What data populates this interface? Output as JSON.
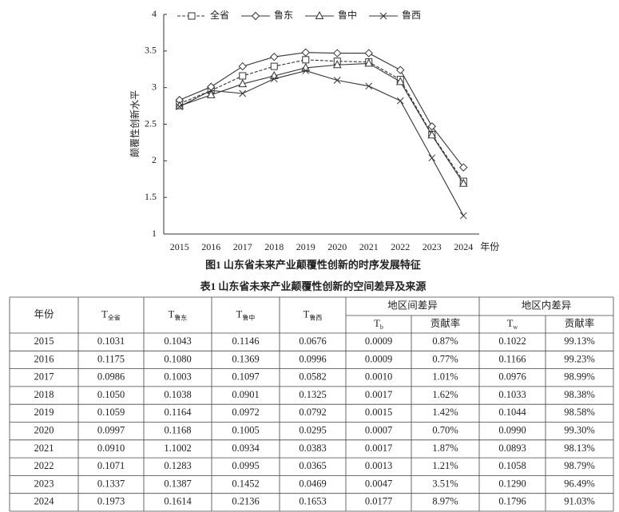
{
  "chart_data": {
    "type": "line",
    "categories": [
      "2015",
      "2016",
      "2017",
      "2018",
      "2019",
      "2020",
      "2021",
      "2022",
      "2023",
      "2024"
    ],
    "xlabel": "年份",
    "ylabel": "颠覆性创新水平",
    "ylim": [
      1,
      4
    ],
    "yticks": [
      1,
      1.5,
      2,
      2.5,
      3,
      3.5,
      4
    ],
    "caption": "图1 山东省未来产业颠覆性创新的时序发展特征",
    "series": [
      {
        "name": "全省",
        "color": "#333333",
        "marker": "square",
        "dashed": true,
        "values": [
          2.78,
          2.96,
          3.16,
          3.29,
          3.38,
          3.36,
          3.35,
          3.11,
          2.36,
          1.72
        ]
      },
      {
        "name": "鲁东",
        "color": "#333333",
        "marker": "diamond",
        "dashed": false,
        "values": [
          2.83,
          3.01,
          3.29,
          3.42,
          3.48,
          3.47,
          3.47,
          3.24,
          2.47,
          1.91
        ]
      },
      {
        "name": "鲁中",
        "color": "#333333",
        "marker": "triangle",
        "dashed": false,
        "values": [
          2.75,
          2.9,
          3.05,
          3.16,
          3.27,
          3.31,
          3.33,
          3.08,
          2.35,
          1.69
        ]
      },
      {
        "name": "鲁西",
        "color": "#333333",
        "marker": "cross",
        "dashed": false,
        "values": [
          2.74,
          2.96,
          2.92,
          3.12,
          3.23,
          3.1,
          3.02,
          2.82,
          2.04,
          1.25
        ]
      }
    ]
  },
  "table": {
    "title": "表1 山东省未来产业颠覆性创新的空间差异及来源",
    "header": {
      "year": "年份",
      "t_cols": [
        {
          "main": "T",
          "sub": "全省"
        },
        {
          "main": "T",
          "sub": "鲁东"
        },
        {
          "main": "T",
          "sub": "鲁中"
        },
        {
          "main": "T",
          "sub": "鲁西"
        }
      ],
      "groups": [
        {
          "label": "地区间差异",
          "t": {
            "main": "T",
            "sub": "b"
          },
          "rate": "贡献率"
        },
        {
          "label": "地区内差异",
          "t": {
            "main": "T",
            "sub": "w"
          },
          "rate": "贡献率"
        }
      ]
    },
    "rows": [
      [
        "2015",
        "0.1031",
        "0.1043",
        "0.1146",
        "0.0676",
        "0.0009",
        "0.87%",
        "0.1022",
        "99.13%"
      ],
      [
        "2016",
        "0.1175",
        "0.1080",
        "0.1369",
        "0.0996",
        "0.0009",
        "0.77%",
        "0.1166",
        "99.23%"
      ],
      [
        "2017",
        "0.0986",
        "0.1003",
        "0.1097",
        "0.0582",
        "0.0010",
        "1.01%",
        "0.0976",
        "98.99%"
      ],
      [
        "2018",
        "0.1050",
        "0.1038",
        "0.0901",
        "0.1325",
        "0.0017",
        "1.62%",
        "0.1033",
        "98.38%"
      ],
      [
        "2019",
        "0.1059",
        "0.1164",
        "0.0972",
        "0.0792",
        "0.0015",
        "1.42%",
        "0.1044",
        "98.58%"
      ],
      [
        "2020",
        "0.0997",
        "0.1168",
        "0.1005",
        "0.0295",
        "0.0007",
        "0.70%",
        "0.0990",
        "99.30%"
      ],
      [
        "2021",
        "0.0910",
        "1.1002",
        "0.0934",
        "0.0383",
        "0.0017",
        "1.87%",
        "0.0893",
        "98.13%"
      ],
      [
        "2022",
        "0.1071",
        "0.1283",
        "0.0995",
        "0.0365",
        "0.0013",
        "1.21%",
        "0.1058",
        "98.79%"
      ],
      [
        "2023",
        "0.1337",
        "0.1387",
        "0.1452",
        "0.0469",
        "0.0047",
        "3.51%",
        "0.1290",
        "96.49%"
      ],
      [
        "2024",
        "0.1973",
        "0.1614",
        "0.2136",
        "0.1653",
        "0.0177",
        "8.97%",
        "0.1796",
        "91.03%"
      ]
    ]
  }
}
